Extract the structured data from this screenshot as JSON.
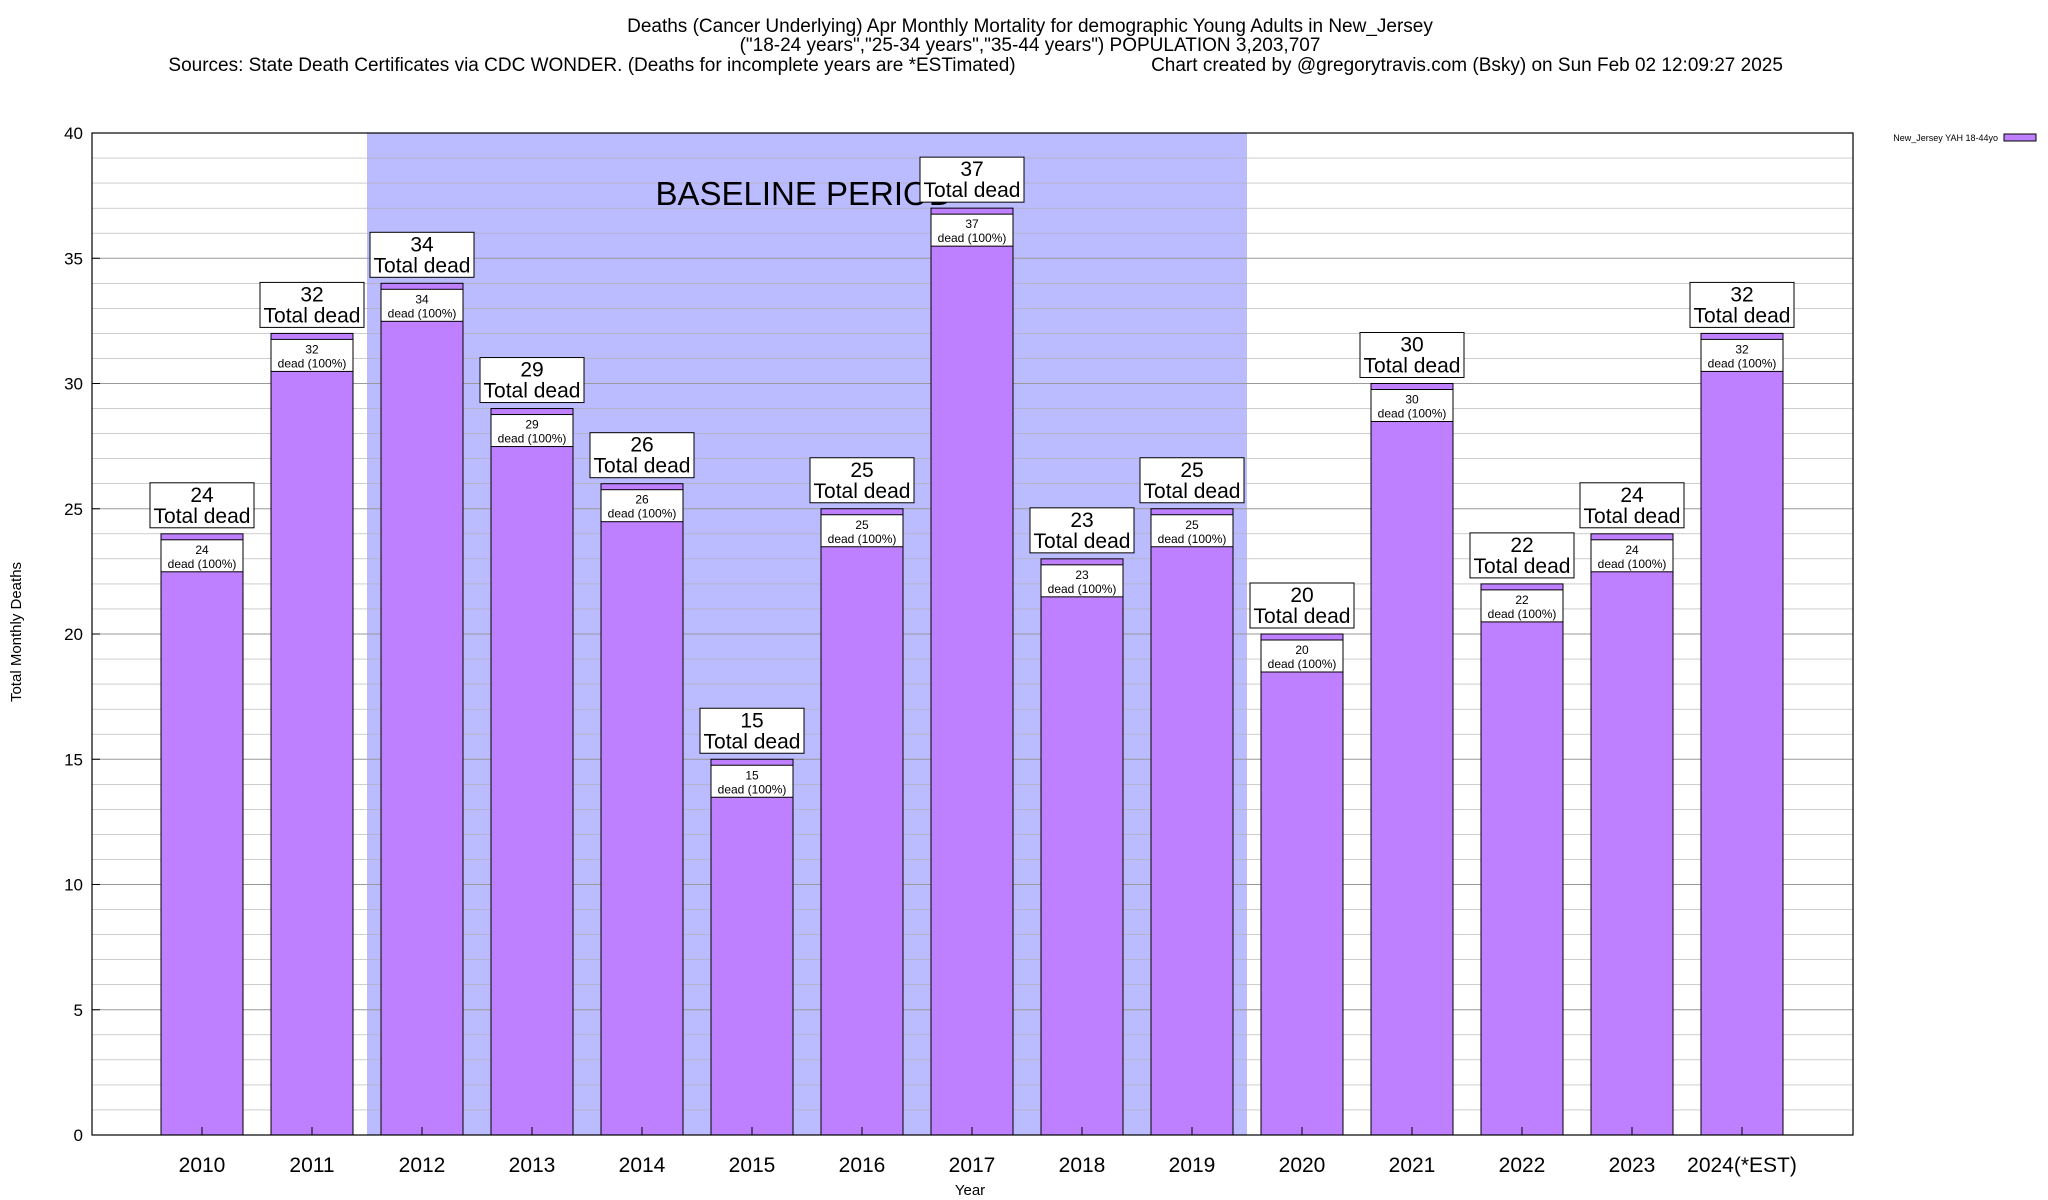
{
  "header": {
    "line1": "Deaths (Cancer Underlying) Apr Monthly Mortality for demographic Young Adults in New_Jersey",
    "line2": "(\"18-24 years\",\"25-34 years\",\"35-44 years\") POPULATION 3,203,707",
    "line3_left": "Sources: State Death Certificates via CDC WONDER. (Deaths for incomplete years are *ESTimated)",
    "line3_right": "Chart created by @gregorytravis.com (Bsky) on Sun Feb 02 12:09:27 2025"
  },
  "colors": {
    "bar_fill": "#bf80ff",
    "bar_stroke": "#000000",
    "baseline_band": "#bbbbff",
    "grid": "#b0b0b0"
  },
  "chart_data": {
    "type": "bar",
    "title": "Deaths (Cancer Underlying) Apr Monthly Mortality for demographic Young Adults in New_Jersey",
    "xlabel": "Year",
    "ylabel": "Total Monthly Deaths",
    "ylim": [
      0,
      40
    ],
    "yticks": [
      0,
      5,
      10,
      15,
      20,
      25,
      30,
      35,
      40
    ],
    "grid": true,
    "legend_position": "top-right",
    "categories": [
      "2010",
      "2011",
      "2012",
      "2013",
      "2014",
      "2015",
      "2016",
      "2017",
      "2018",
      "2019",
      "2020",
      "2021",
      "2022",
      "2023",
      "2024(*EST)"
    ],
    "series": [
      {
        "name": "New_Jersey YAH 18-44yo",
        "values": [
          24,
          32,
          34,
          29,
          26,
          15,
          25,
          37,
          23,
          25,
          20,
          30,
          22,
          24,
          32
        ]
      }
    ],
    "total_label": "Total dead",
    "inner_label": "dead (100%)",
    "annotation": {
      "text": "BASELINE PERIOD",
      "from_category": "2012",
      "to_category": "2019"
    }
  }
}
